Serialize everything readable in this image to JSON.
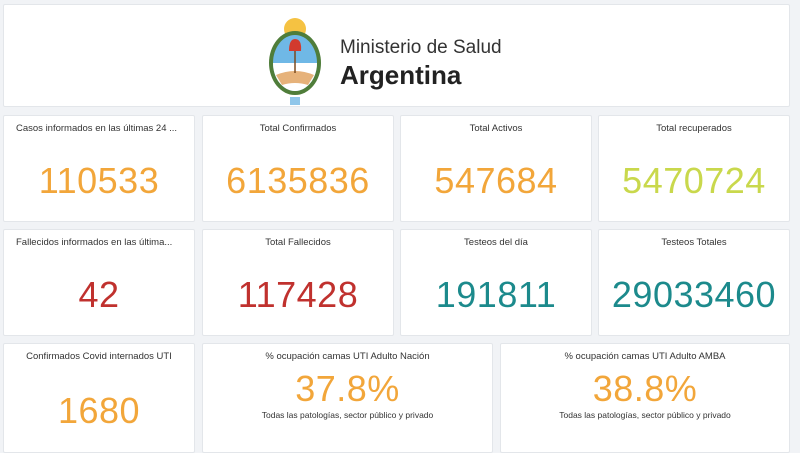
{
  "header": {
    "line1": "Ministerio de Salud",
    "line2": "Argentina"
  },
  "colors": {
    "orange": "#f2a63a",
    "green": "#c9d84c",
    "red": "#c0312e",
    "teal": "#1c8a8c"
  },
  "row1": [
    {
      "title": "Casos informados en las últimas 24 ...",
      "value": "110533"
    },
    {
      "title": "Total Confirmados",
      "value": "6135836"
    },
    {
      "title": "Total Activos",
      "value": "547684"
    },
    {
      "title": "Total recuperados",
      "value": "5470724"
    }
  ],
  "row2": [
    {
      "title": "Fallecidos informados en las última...",
      "value": "42"
    },
    {
      "title": "Total Fallecidos",
      "value": "117428"
    },
    {
      "title": "Testeos del día",
      "value": "191811"
    },
    {
      "title": "Testeos Totales",
      "value": "29033460"
    }
  ],
  "row3": [
    {
      "title": "Confirmados Covid internados UTI",
      "value": "1680"
    },
    {
      "title": "% ocupación camas UTI Adulto Nación",
      "value": "37.8%",
      "subtitle": "Todas las patologías, sector público y privado"
    },
    {
      "title": "% ocupación camas UTI Adulto AMBA",
      "value": "38.8%",
      "subtitle": "Todas las patologías, sector público y privado"
    }
  ]
}
